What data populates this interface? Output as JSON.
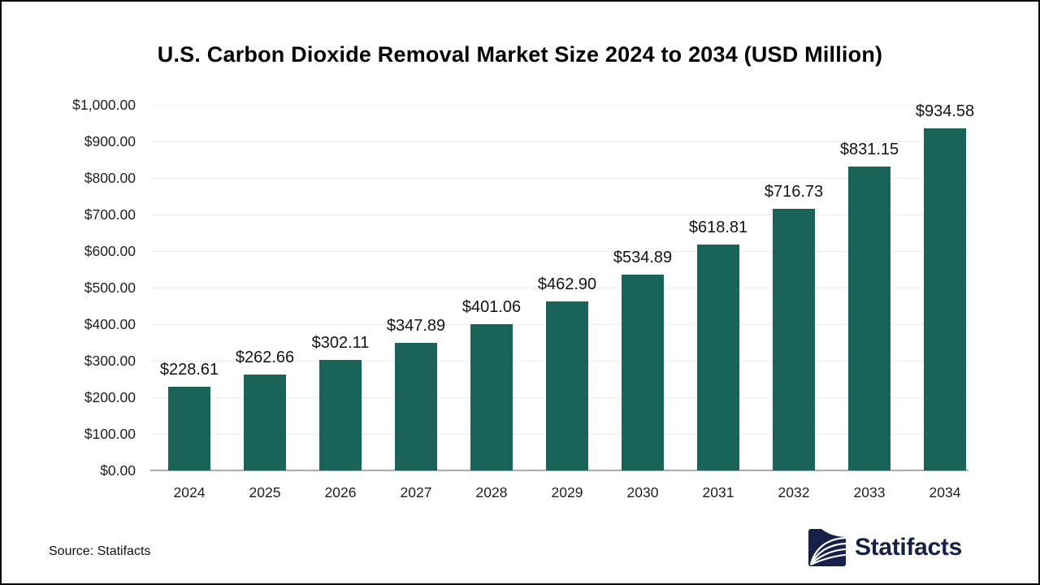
{
  "chart_data": {
    "type": "bar",
    "title": "U.S. Carbon Dioxide Removal Market Size 2024 to 2034 (USD Million)",
    "categories": [
      "2024",
      "2025",
      "2026",
      "2027",
      "2028",
      "2029",
      "2030",
      "2031",
      "2032",
      "2033",
      "2034"
    ],
    "values": [
      228.61,
      262.66,
      302.11,
      347.89,
      401.06,
      462.9,
      534.89,
      618.81,
      716.73,
      831.15,
      934.58
    ],
    "value_labels": [
      "$228.61",
      "$262.66",
      "$302.11",
      "$347.89",
      "$401.06",
      "$462.90",
      "$534.89",
      "$618.81",
      "$716.73",
      "$831.15",
      "$934.58"
    ],
    "xlabel": "",
    "ylabel": "",
    "ylim": [
      0,
      1000
    ],
    "y_tick_step": 100,
    "y_tick_labels": [
      "$0.00",
      "$100.00",
      "$200.00",
      "$300.00",
      "$400.00",
      "$500.00",
      "$600.00",
      "$700.00",
      "$800.00",
      "$900.00",
      "$1,000.00"
    ],
    "grid": "horizontal",
    "legend": "none",
    "bar_color": "#1A6358"
  },
  "footer": {
    "source": "Source: Statifacts",
    "brand": "Statifacts",
    "brand_color": "#172048"
  }
}
